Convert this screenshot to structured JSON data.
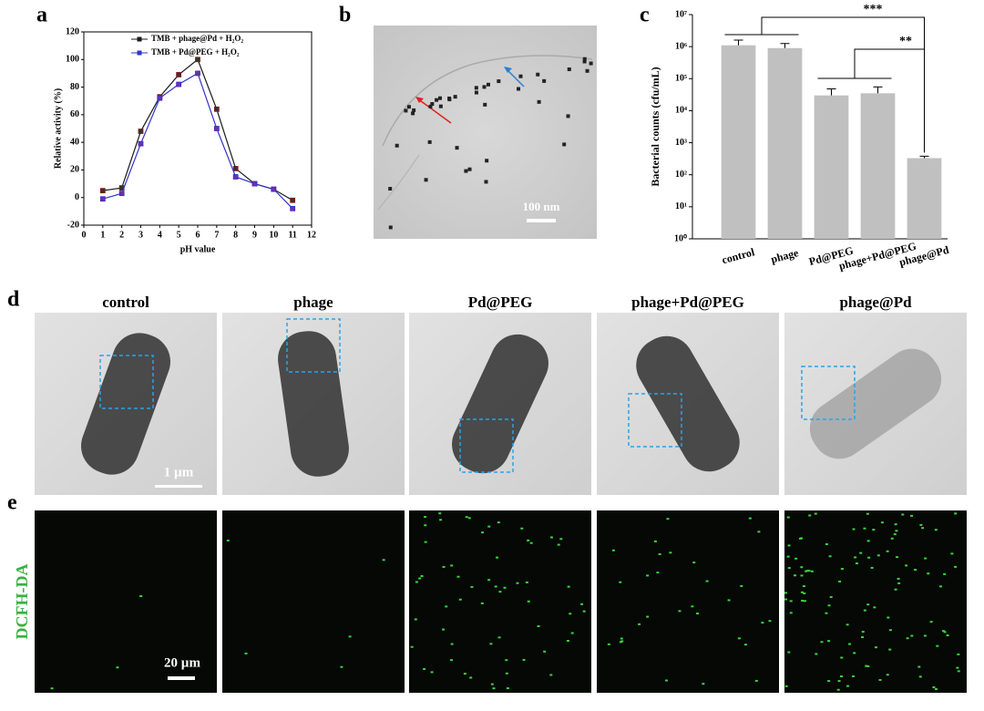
{
  "panel_labels": [
    "a",
    "b",
    "c",
    "d",
    "e"
  ],
  "chart_data": [
    {
      "type": "line",
      "xlabel": "pH value",
      "ylabel": "Relative activity (%)",
      "x": [
        1,
        2,
        3,
        4,
        5,
        6,
        7,
        8,
        9,
        10,
        11
      ],
      "series": [
        {
          "name": "TMB + phage@Pd + H₂O₂",
          "color": "#1a1a1a",
          "values": [
            5,
            7,
            48,
            73,
            89,
            100,
            64,
            21,
            10,
            6,
            -2
          ]
        },
        {
          "name": "TMB + Pd@PEG + H₂O₂",
          "color": "#3333cc",
          "values": [
            -1,
            3,
            39,
            72,
            82,
            90,
            50,
            15,
            10,
            6,
            -8
          ]
        }
      ],
      "xlim": [
        0,
        12
      ],
      "xticks": [
        0,
        1,
        2,
        3,
        4,
        5,
        6,
        7,
        8,
        9,
        10,
        11,
        12
      ],
      "ylim": [
        -20,
        120
      ],
      "yticks": [
        -20,
        0,
        20,
        40,
        60,
        80,
        100,
        120
      ],
      "legend": "top"
    },
    {
      "type": "bar",
      "ylabel": "Bacterial counts (cfu/mL)",
      "log_scale": true,
      "categories": [
        "control",
        "phage",
        "Pd@PEG",
        "phage+Pd@PEG",
        "phage@Pd"
      ],
      "values": [
        1100000,
        900000,
        30000,
        35000,
        330
      ],
      "errors": [
        500000,
        350000,
        18000,
        20000,
        50
      ],
      "color": "#c0c0c0",
      "ylim": [
        1,
        10000000
      ],
      "yticks": [
        {
          "value": 1,
          "label": "10⁰"
        },
        {
          "value": 10,
          "label": "10¹"
        },
        {
          "value": 100,
          "label": "10²"
        },
        {
          "value": 1000,
          "label": "10³"
        },
        {
          "value": 10000,
          "label": "10⁴"
        },
        {
          "value": 100000,
          "label": "10⁵"
        },
        {
          "value": 1000000,
          "label": "10⁶"
        },
        {
          "value": 10000000,
          "label": "10⁷"
        }
      ],
      "annotations": [
        "***",
        "**"
      ]
    }
  ],
  "tem": {
    "scale_bar": "100 nm"
  },
  "micrographs": {
    "columns": [
      "control",
      "phage",
      "Pd@PEG",
      "phage+Pd@PEG",
      "phage@Pd"
    ],
    "scale_bar_d": "1 µm",
    "row_label_e": "DCFH-DA",
    "scale_bar_e": "20 µm"
  }
}
